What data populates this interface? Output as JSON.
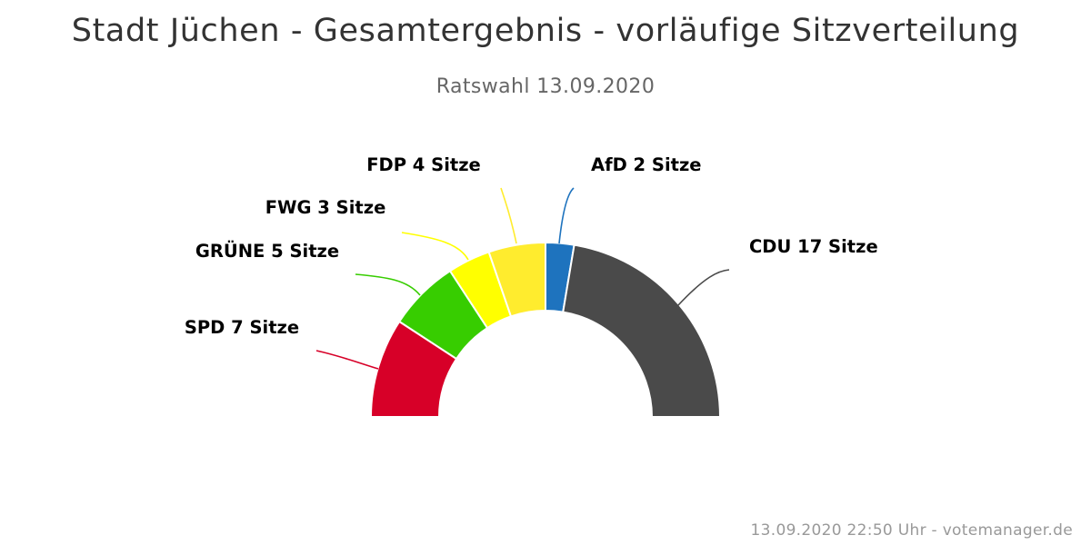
{
  "chart_data": {
    "type": "pie",
    "variant": "parliament-semicircle",
    "title": "Stadt Jüchen - Gesamtergebnis - vorläufige Sitzverteilung",
    "subtitle": "Ratswahl 13.09.2020",
    "series": [
      {
        "name": "SPD",
        "seats": 7,
        "label": "SPD 7 Sitze",
        "color": "#d70028"
      },
      {
        "name": "GRÜNE",
        "seats": 5,
        "label": "GRÜNE 5 Sitze",
        "color": "#37cd00"
      },
      {
        "name": "FWG",
        "seats": 3,
        "label": "FWG 3 Sitze",
        "color": "#ffff00"
      },
      {
        "name": "FDP",
        "seats": 4,
        "label": "FDP 4 Sitze",
        "color": "#ffec2e"
      },
      {
        "name": "AfD",
        "seats": 2,
        "label": "AfD 2 Sitze",
        "color": "#1e73be"
      },
      {
        "name": "CDU",
        "seats": 17,
        "label": "CDU 17 Sitze",
        "color": "#4a4a4a"
      }
    ],
    "total_seats": 38,
    "legend": "none"
  },
  "credits": "13.09.2020 22:50 Uhr - votemanager.de"
}
